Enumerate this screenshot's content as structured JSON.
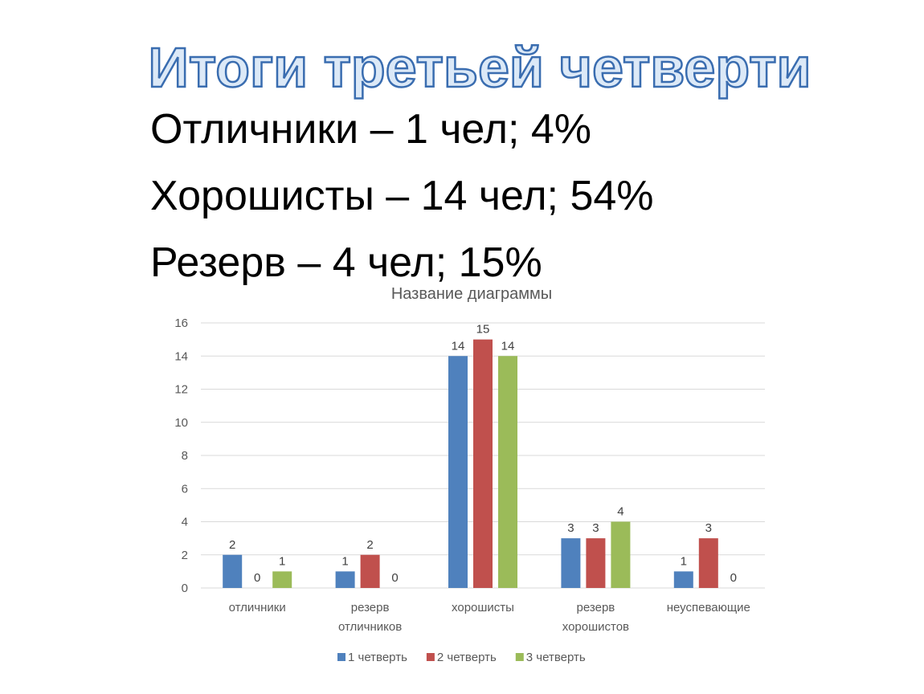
{
  "slide": {
    "title": "Итоги третьей четверти",
    "lines": [
      "Отличники – 1 чел; 4%",
      "Хорошисты – 14 чел; 54%",
      "Резерв – 4 чел; 15%"
    ]
  },
  "chart_data": {
    "type": "bar",
    "title": "Название диаграммы",
    "categories": [
      "отличники",
      "резерв отличников",
      "хорошисты",
      "резерв хорошистов",
      "неуспевающие"
    ],
    "series": [
      {
        "name": "1 четверть",
        "color": "#4f81bd",
        "values": [
          2,
          1,
          14,
          3,
          1
        ]
      },
      {
        "name": "2 четверть",
        "color": "#c0504d",
        "values": [
          0,
          2,
          15,
          3,
          3
        ]
      },
      {
        "name": "3 четверть",
        "color": "#9bbb59",
        "values": [
          1,
          0,
          14,
          4,
          0
        ]
      }
    ],
    "ylim": [
      0,
      16
    ],
    "yticks": [
      0,
      2,
      4,
      6,
      8,
      10,
      12,
      14,
      16
    ],
    "grid": true,
    "legend": "bottom"
  }
}
